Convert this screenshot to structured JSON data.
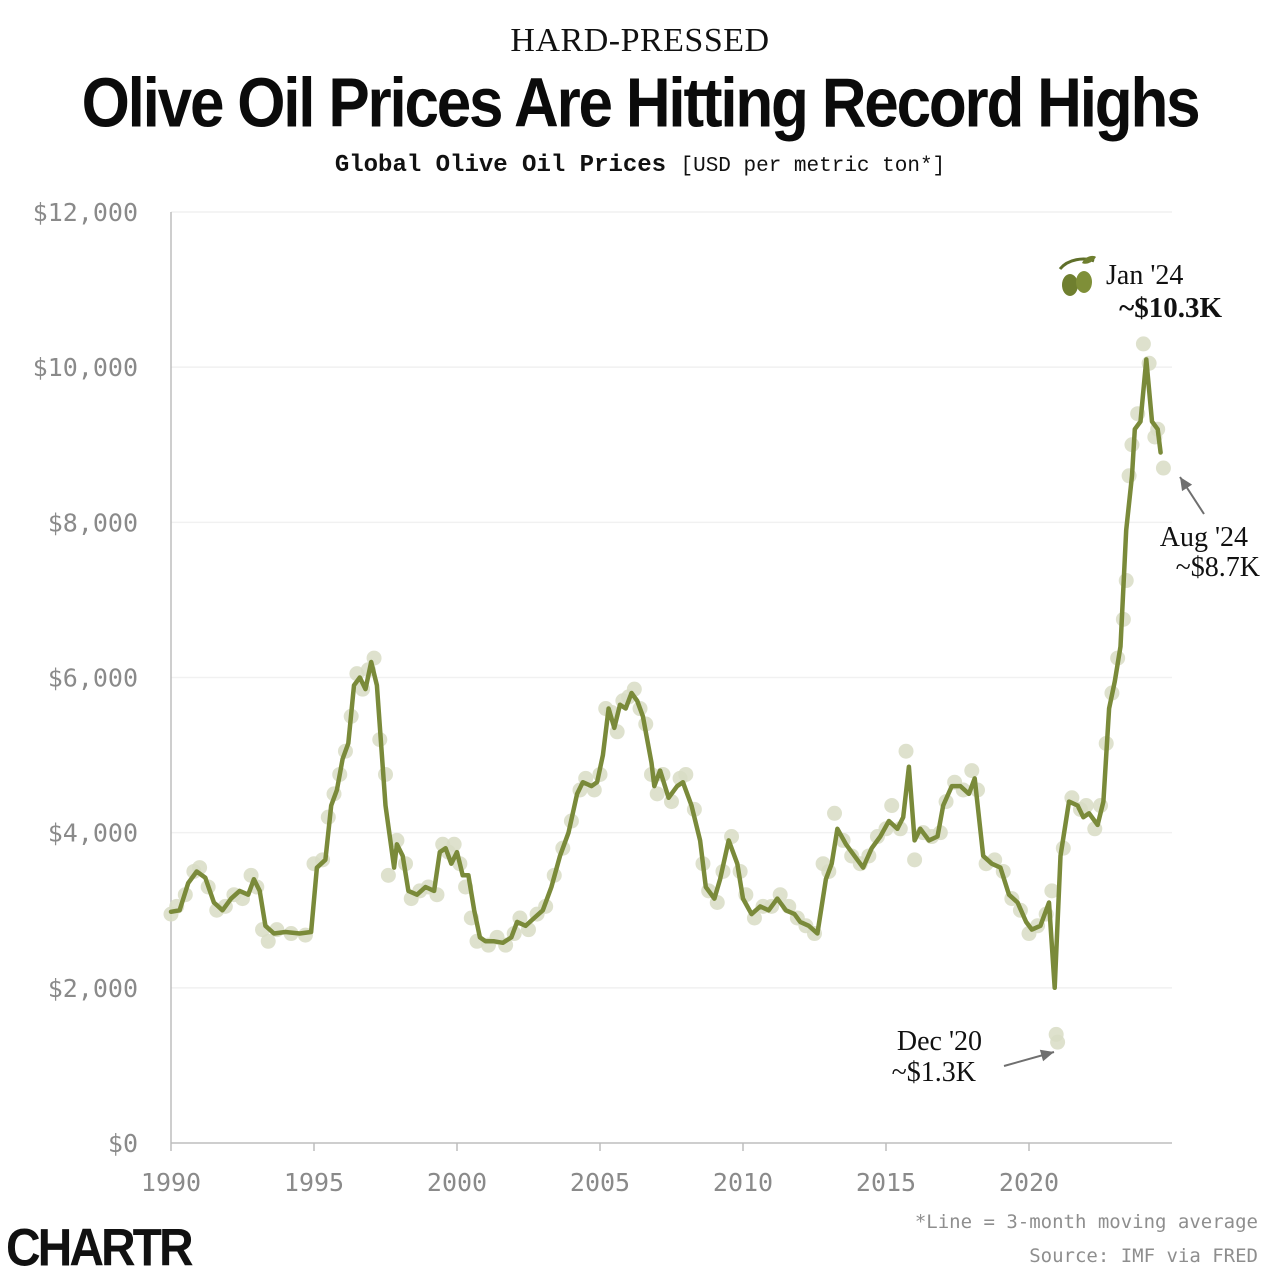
{
  "header": {
    "kicker": "HARD-PRESSED",
    "title": "Olive Oil Prices Are Hitting Record Highs",
    "subtitle_bold": "Global Olive Oil Prices",
    "subtitle_units": "[USD per metric ton*]"
  },
  "colors": {
    "line": "#7a8a3a",
    "dots": "#d8dcc4",
    "axis": "#bdbdbd",
    "grid": "#f1f1f1",
    "arrow": "#6f6f6f"
  },
  "chart_data": {
    "type": "line",
    "title": "Global Olive Oil Prices",
    "ylabel": "USD per metric ton",
    "xlim": [
      1990,
      2025
    ],
    "ylim": [
      0,
      12000
    ],
    "x_ticks": [
      "1990",
      "1995",
      "2000",
      "2005",
      "2010",
      "2015",
      "2020"
    ],
    "y_ticks": [
      "$0",
      "$2,000",
      "$4,000",
      "$6,000",
      "$8,000",
      "$10,000",
      "$12,000"
    ],
    "series": [
      {
        "name": "3-month moving average",
        "points": [
          [
            1990.0,
            2980
          ],
          [
            1990.3,
            3000
          ],
          [
            1990.6,
            3350
          ],
          [
            1990.9,
            3500
          ],
          [
            1991.2,
            3420
          ],
          [
            1991.5,
            3100
          ],
          [
            1991.8,
            3000
          ],
          [
            1992.1,
            3150
          ],
          [
            1992.4,
            3250
          ],
          [
            1992.7,
            3200
          ],
          [
            1992.9,
            3400
          ],
          [
            1993.1,
            3250
          ],
          [
            1993.3,
            2800
          ],
          [
            1993.6,
            2700
          ],
          [
            1994.0,
            2720
          ],
          [
            1994.5,
            2700
          ],
          [
            1994.9,
            2720
          ],
          [
            1995.1,
            3550
          ],
          [
            1995.4,
            3650
          ],
          [
            1995.6,
            4350
          ],
          [
            1995.8,
            4550
          ],
          [
            1996.0,
            4950
          ],
          [
            1996.2,
            5150
          ],
          [
            1996.4,
            5900
          ],
          [
            1996.6,
            6000
          ],
          [
            1996.8,
            5850
          ],
          [
            1997.0,
            6200
          ],
          [
            1997.2,
            5900
          ],
          [
            1997.5,
            4350
          ],
          [
            1997.8,
            3550
          ],
          [
            1997.9,
            3850
          ],
          [
            1998.1,
            3700
          ],
          [
            1998.3,
            3250
          ],
          [
            1998.6,
            3200
          ],
          [
            1998.9,
            3300
          ],
          [
            1999.2,
            3250
          ],
          [
            1999.4,
            3750
          ],
          [
            1999.6,
            3800
          ],
          [
            1999.8,
            3600
          ],
          [
            2000.0,
            3750
          ],
          [
            2000.2,
            3450
          ],
          [
            2000.4,
            3450
          ],
          [
            2000.6,
            3000
          ],
          [
            2000.8,
            2650
          ],
          [
            2001.0,
            2600
          ],
          [
            2001.3,
            2600
          ],
          [
            2001.6,
            2580
          ],
          [
            2001.9,
            2650
          ],
          [
            2002.1,
            2850
          ],
          [
            2002.4,
            2800
          ],
          [
            2002.7,
            2900
          ],
          [
            2003.0,
            3000
          ],
          [
            2003.3,
            3300
          ],
          [
            2003.6,
            3700
          ],
          [
            2003.9,
            4000
          ],
          [
            2004.2,
            4500
          ],
          [
            2004.4,
            4650
          ],
          [
            2004.7,
            4600
          ],
          [
            2004.9,
            4650
          ],
          [
            2005.1,
            5000
          ],
          [
            2005.3,
            5600
          ],
          [
            2005.5,
            5350
          ],
          [
            2005.7,
            5650
          ],
          [
            2005.9,
            5600
          ],
          [
            2006.1,
            5800
          ],
          [
            2006.3,
            5700
          ],
          [
            2006.5,
            5500
          ],
          [
            2006.8,
            4900
          ],
          [
            2006.9,
            4600
          ],
          [
            2007.1,
            4800
          ],
          [
            2007.4,
            4450
          ],
          [
            2007.7,
            4600
          ],
          [
            2007.9,
            4650
          ],
          [
            2008.2,
            4350
          ],
          [
            2008.5,
            3900
          ],
          [
            2008.7,
            3300
          ],
          [
            2009.0,
            3150
          ],
          [
            2009.2,
            3400
          ],
          [
            2009.5,
            3900
          ],
          [
            2009.8,
            3600
          ],
          [
            2010.0,
            3150
          ],
          [
            2010.3,
            2950
          ],
          [
            2010.6,
            3050
          ],
          [
            2010.9,
            3000
          ],
          [
            2011.2,
            3150
          ],
          [
            2011.5,
            3000
          ],
          [
            2011.8,
            2950
          ],
          [
            2012.0,
            2850
          ],
          [
            2012.3,
            2800
          ],
          [
            2012.6,
            2700
          ],
          [
            2012.9,
            3400
          ],
          [
            2013.1,
            3600
          ],
          [
            2013.3,
            4050
          ],
          [
            2013.6,
            3850
          ],
          [
            2013.9,
            3700
          ],
          [
            2014.2,
            3550
          ],
          [
            2014.5,
            3800
          ],
          [
            2014.8,
            3950
          ],
          [
            2015.1,
            4150
          ],
          [
            2015.4,
            4050
          ],
          [
            2015.6,
            4200
          ],
          [
            2015.8,
            4850
          ],
          [
            2016.0,
            3900
          ],
          [
            2016.2,
            4050
          ],
          [
            2016.5,
            3900
          ],
          [
            2016.8,
            3950
          ],
          [
            2017.0,
            4350
          ],
          [
            2017.3,
            4600
          ],
          [
            2017.6,
            4600
          ],
          [
            2017.9,
            4500
          ],
          [
            2018.1,
            4700
          ],
          [
            2018.4,
            3700
          ],
          [
            2018.7,
            3600
          ],
          [
            2019.0,
            3550
          ],
          [
            2019.3,
            3200
          ],
          [
            2019.6,
            3100
          ],
          [
            2019.9,
            2850
          ],
          [
            2020.1,
            2750
          ],
          [
            2020.4,
            2800
          ],
          [
            2020.7,
            3100
          ],
          [
            2020.9,
            2000
          ],
          [
            2021.1,
            3700
          ],
          [
            2021.4,
            4400
          ],
          [
            2021.7,
            4350
          ],
          [
            2021.9,
            4200
          ],
          [
            2022.1,
            4250
          ],
          [
            2022.4,
            4100
          ],
          [
            2022.6,
            4400
          ],
          [
            2022.8,
            5600
          ],
          [
            2023.0,
            5950
          ],
          [
            2023.2,
            6400
          ],
          [
            2023.4,
            7900
          ],
          [
            2023.6,
            8600
          ],
          [
            2023.7,
            9200
          ],
          [
            2023.9,
            9300
          ],
          [
            2024.1,
            10100
          ],
          [
            2024.3,
            9300
          ],
          [
            2024.5,
            9200
          ],
          [
            2024.6,
            8900
          ]
        ]
      },
      {
        "name": "monthly price",
        "points": [
          [
            1990.0,
            2950
          ],
          [
            1990.2,
            3050
          ],
          [
            1990.5,
            3200
          ],
          [
            1990.8,
            3500
          ],
          [
            1991.0,
            3550
          ],
          [
            1991.3,
            3300
          ],
          [
            1991.6,
            3000
          ],
          [
            1991.9,
            3050
          ],
          [
            1992.2,
            3200
          ],
          [
            1992.5,
            3150
          ],
          [
            1992.8,
            3450
          ],
          [
            1993.0,
            3300
          ],
          [
            1993.2,
            2750
          ],
          [
            1993.4,
            2600
          ],
          [
            1993.7,
            2750
          ],
          [
            1994.2,
            2700
          ],
          [
            1994.7,
            2680
          ],
          [
            1995.0,
            3600
          ],
          [
            1995.3,
            3650
          ],
          [
            1995.5,
            4200
          ],
          [
            1995.7,
            4500
          ],
          [
            1995.9,
            4750
          ],
          [
            1996.1,
            5050
          ],
          [
            1996.3,
            5500
          ],
          [
            1996.5,
            6050
          ],
          [
            1996.7,
            5850
          ],
          [
            1996.9,
            6100
          ],
          [
            1997.1,
            6250
          ],
          [
            1997.3,
            5200
          ],
          [
            1997.5,
            4750
          ],
          [
            1997.6,
            3450
          ],
          [
            1997.9,
            3900
          ],
          [
            1998.2,
            3600
          ],
          [
            1998.4,
            3150
          ],
          [
            1998.7,
            3250
          ],
          [
            1999.0,
            3300
          ],
          [
            1999.3,
            3200
          ],
          [
            1999.5,
            3850
          ],
          [
            1999.7,
            3750
          ],
          [
            1999.9,
            3850
          ],
          [
            2000.1,
            3600
          ],
          [
            2000.3,
            3300
          ],
          [
            2000.5,
            2900
          ],
          [
            2000.7,
            2600
          ],
          [
            2001.1,
            2550
          ],
          [
            2001.4,
            2650
          ],
          [
            2001.7,
            2550
          ],
          [
            2002.0,
            2700
          ],
          [
            2002.2,
            2900
          ],
          [
            2002.5,
            2750
          ],
          [
            2002.8,
            2950
          ],
          [
            2003.1,
            3050
          ],
          [
            2003.4,
            3450
          ],
          [
            2003.7,
            3800
          ],
          [
            2004.0,
            4150
          ],
          [
            2004.3,
            4550
          ],
          [
            2004.5,
            4700
          ],
          [
            2004.8,
            4550
          ],
          [
            2005.0,
            4750
          ],
          [
            2005.2,
            5600
          ],
          [
            2005.4,
            5550
          ],
          [
            2005.6,
            5300
          ],
          [
            2005.8,
            5700
          ],
          [
            2006.0,
            5750
          ],
          [
            2006.2,
            5850
          ],
          [
            2006.4,
            5600
          ],
          [
            2006.6,
            5400
          ],
          [
            2006.8,
            4750
          ],
          [
            2007.0,
            4500
          ],
          [
            2007.2,
            4750
          ],
          [
            2007.5,
            4400
          ],
          [
            2007.8,
            4700
          ],
          [
            2008.0,
            4750
          ],
          [
            2008.3,
            4300
          ],
          [
            2008.6,
            3600
          ],
          [
            2008.8,
            3250
          ],
          [
            2009.1,
            3100
          ],
          [
            2009.3,
            3500
          ],
          [
            2009.6,
            3950
          ],
          [
            2009.9,
            3500
          ],
          [
            2010.1,
            3200
          ],
          [
            2010.4,
            2900
          ],
          [
            2010.7,
            3050
          ],
          [
            2011.0,
            3050
          ],
          [
            2011.3,
            3200
          ],
          [
            2011.6,
            3050
          ],
          [
            2011.9,
            2900
          ],
          [
            2012.2,
            2800
          ],
          [
            2012.5,
            2700
          ],
          [
            2012.8,
            3600
          ],
          [
            2013.0,
            3500
          ],
          [
            2013.2,
            4250
          ],
          [
            2013.5,
            3900
          ],
          [
            2013.8,
            3700
          ],
          [
            2014.1,
            3600
          ],
          [
            2014.4,
            3700
          ],
          [
            2014.7,
            3950
          ],
          [
            2015.0,
            4050
          ],
          [
            2015.2,
            4350
          ],
          [
            2015.5,
            4050
          ],
          [
            2015.7,
            5050
          ],
          [
            2016.0,
            3650
          ],
          [
            2016.3,
            4000
          ],
          [
            2016.6,
            3950
          ],
          [
            2016.9,
            4000
          ],
          [
            2017.1,
            4400
          ],
          [
            2017.4,
            4650
          ],
          [
            2017.7,
            4550
          ],
          [
            2018.0,
            4800
          ],
          [
            2018.2,
            4550
          ],
          [
            2018.5,
            3600
          ],
          [
            2018.8,
            3650
          ],
          [
            2019.1,
            3500
          ],
          [
            2019.4,
            3150
          ],
          [
            2019.7,
            3000
          ],
          [
            2020.0,
            2700
          ],
          [
            2020.3,
            2800
          ],
          [
            2020.6,
            2950
          ],
          [
            2020.8,
            3250
          ],
          [
            2021.0,
            1300
          ],
          [
            2020.95,
            1400
          ],
          [
            2021.2,
            3800
          ],
          [
            2021.5,
            4450
          ],
          [
            2021.8,
            4300
          ],
          [
            2022.0,
            4350
          ],
          [
            2022.3,
            4050
          ],
          [
            2022.5,
            4350
          ],
          [
            2022.7,
            5150
          ],
          [
            2022.9,
            5800
          ],
          [
            2023.1,
            6250
          ],
          [
            2023.3,
            6750
          ],
          [
            2023.4,
            7250
          ],
          [
            2023.5,
            8600
          ],
          [
            2023.6,
            9000
          ],
          [
            2023.8,
            9400
          ],
          [
            2024.0,
            10300
          ],
          [
            2024.2,
            10050
          ],
          [
            2024.4,
            9100
          ],
          [
            2024.5,
            9200
          ],
          [
            2024.7,
            8700
          ]
        ]
      }
    ],
    "annotations": [
      {
        "label": "Jan '24",
        "value_text": "~$10.3K",
        "x": 2024.0,
        "y": 10300
      },
      {
        "label": "Aug '24",
        "value_text": "~$8.7K",
        "x": 2024.6,
        "y": 8700
      },
      {
        "label": "Dec '20",
        "value_text": "~$1.3K",
        "x": 2020.9,
        "y": 1300
      }
    ]
  },
  "footer": {
    "note": "*Line = 3-month moving average",
    "source": "Source: IMF via FRED",
    "brand": "CHARTR"
  }
}
